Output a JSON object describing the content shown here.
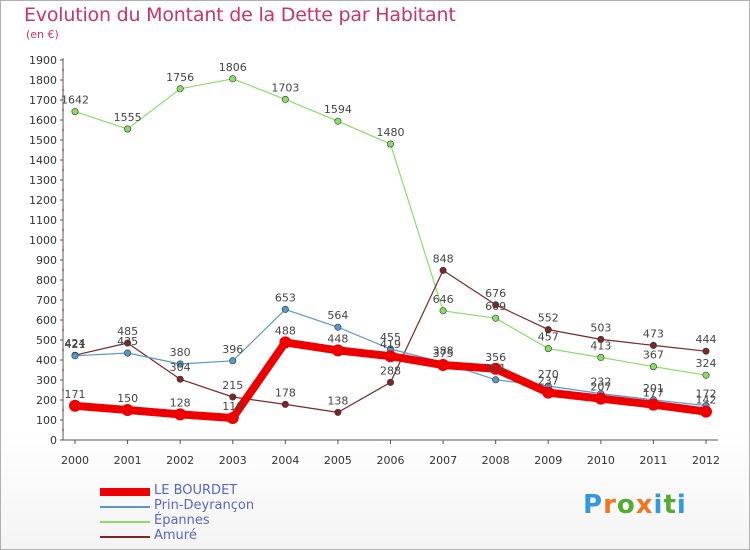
{
  "header": {
    "title": "Evolution du Montant de la Dette par Habitant",
    "subtitle": "(en €)"
  },
  "logo": {
    "text": "Proxiti",
    "letters": [
      "P",
      "r",
      "o",
      "x",
      "i",
      "t",
      "i"
    ],
    "colors": [
      "#3399dd",
      "#ee7722",
      "#55aa33",
      "#ee7722",
      "#3399dd",
      "#55aa33",
      "#3399dd"
    ]
  },
  "chart_data": {
    "type": "line",
    "title": "Evolution du Montant de la Dette par Habitant",
    "subtitle": "(en €)",
    "x": [
      "2000",
      "2001",
      "2002",
      "2003",
      "2004",
      "2005",
      "2006",
      "2007",
      "2008",
      "2009",
      "2010",
      "2011",
      "2012"
    ],
    "ylim": [
      0,
      1900
    ],
    "yticks": [
      0,
      100,
      200,
      300,
      400,
      500,
      600,
      700,
      800,
      900,
      1000,
      1100,
      1200,
      1300,
      1400,
      1500,
      1600,
      1700,
      1800,
      1900
    ],
    "grid": false,
    "legend_position": "bottom-left",
    "series": [
      {
        "name": "LE BOURDET",
        "color": "#ee0000",
        "values": [
          171,
          150,
          128,
          110,
          488,
          448,
          419,
          375,
          356,
          237,
          207,
          177,
          142
        ]
      },
      {
        "name": "Prin-Deyrançon",
        "color": "#5599cc",
        "values": [
          421,
          435,
          380,
          396,
          653,
          564,
          455,
          388,
          301,
          270,
          232,
          201,
          172
        ]
      },
      {
        "name": "Épannes",
        "color": "#88dd66",
        "values": [
          1642,
          1555,
          1756,
          1806,
          1703,
          1594,
          1480,
          646,
          609,
          457,
          413,
          367,
          324
        ]
      },
      {
        "name": "Amuré",
        "color": "#7a2828",
        "values": [
          424,
          485,
          304,
          215,
          178,
          138,
          288,
          848,
          676,
          552,
          503,
          473,
          444
        ]
      }
    ]
  }
}
